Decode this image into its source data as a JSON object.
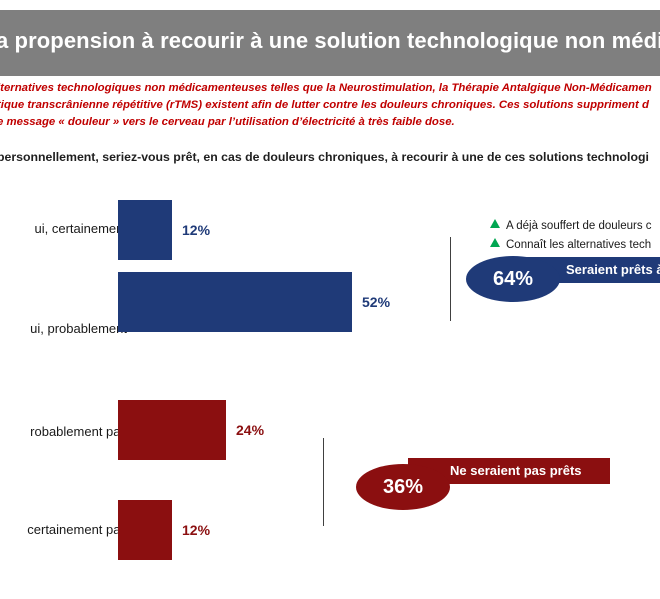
{
  "title": "a propension à recourir à une solution technologique non médican",
  "intro_lines": [
    "lternatives technologiques non médicamenteuses telles que la Neurostimulation, la Thérapie Antalgique Non-Médicamen",
    "tique transcrânienne répétitive (rTMS) existent afin de lutter contre les douleurs chroniques. Ces solutions suppriment d",
    "e message « douleur » vers le cerveau par l’utilisation d’électricité à très faible dose."
  ],
  "question": "personnellement, seriez-vous prêt, en cas de douleurs chroniques, à recourir à une de ces solutions technologi",
  "legend": {
    "item1": "A déjà souffert de douleurs c",
    "item2": "Connaît les alternatives tech"
  },
  "summary": {
    "positive_value": "64%",
    "positive_label": "Seraient prêts à",
    "negative_value": "36%",
    "negative_label": "Ne seraient pas prêts"
  },
  "colors": {
    "positive": "#1f3a78",
    "negative": "#8b0f10",
    "title_bg": "#7f7f7f",
    "intro": "#c00000",
    "legend_marker": "#00a651"
  },
  "chart_data": {
    "type": "bar",
    "orientation": "horizontal",
    "categories": [
      "Oui, certainement",
      "Oui, probablement",
      "Non, probablement pas",
      "Non, certainement pas"
    ],
    "category_labels_visible": [
      "ui, certainement",
      "ui, probablement",
      "robablement pas",
      "certainement pas"
    ],
    "values": [
      12,
      52,
      24,
      12
    ],
    "value_labels": [
      "12%",
      "52%",
      "24%",
      "12%"
    ],
    "unit": "%",
    "xlim": [
      0,
      60
    ],
    "grid": false,
    "legend": "right",
    "bar_colors": [
      "#1f3a78",
      "#1f3a78",
      "#8b0f10",
      "#8b0f10"
    ]
  }
}
